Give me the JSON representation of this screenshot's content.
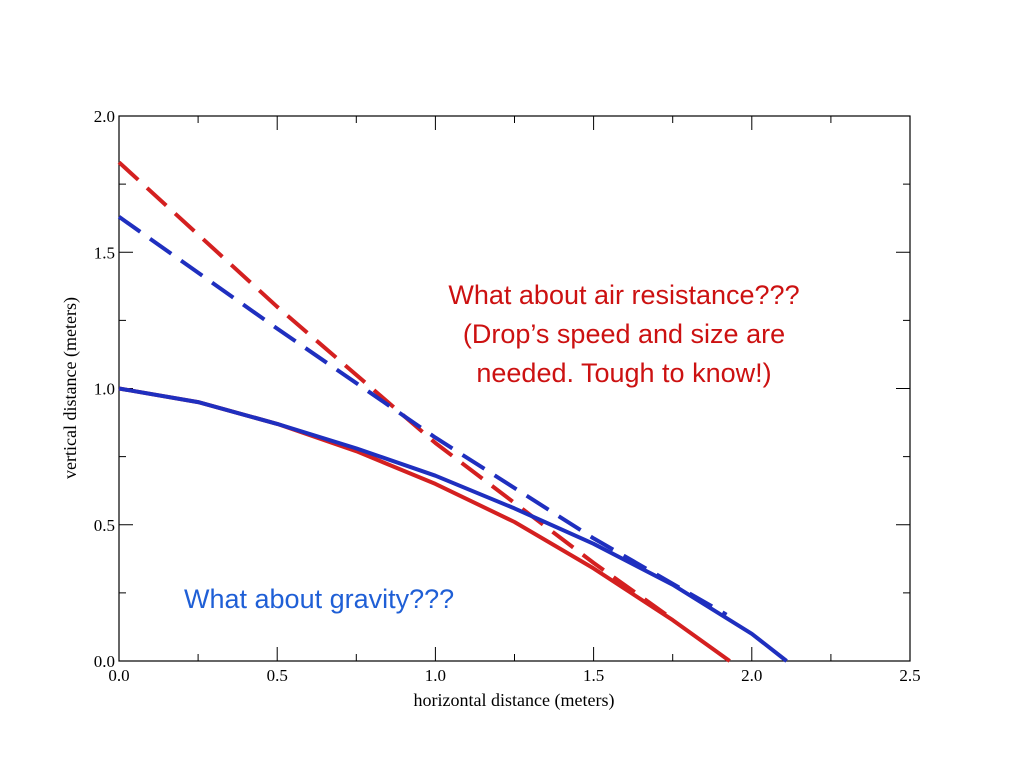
{
  "chart_data": {
    "type": "line",
    "xlabel": "horizontal distance (meters)",
    "ylabel": "vertical distance (meters)",
    "xlim": [
      0,
      2.5
    ],
    "ylim": [
      0,
      2.0
    ],
    "x_ticks": [
      "0.0",
      "0.5",
      "1.0",
      "1.5",
      "2.0",
      "2.5"
    ],
    "y_ticks": [
      "0.0",
      "0.5",
      "1.0",
      "1.5",
      "2.0"
    ],
    "grid": false,
    "series": [
      {
        "color": "#d42020",
        "style": "dashed",
        "x": [
          0,
          0.5,
          1.0,
          1.5,
          1.73
        ],
        "y": [
          1.83,
          1.3,
          0.8,
          0.36,
          0.17
        ]
      },
      {
        "color": "#1f2fbf",
        "style": "dashed",
        "x": [
          0,
          0.5,
          1.0,
          1.5,
          1.92
        ],
        "y": [
          1.63,
          1.22,
          0.82,
          0.45,
          0.17
        ]
      },
      {
        "color": "#d42020",
        "style": "solid",
        "x": [
          0,
          0.25,
          0.5,
          0.75,
          1.0,
          1.25,
          1.5,
          1.75,
          1.93
        ],
        "y": [
          1.0,
          0.95,
          0.87,
          0.77,
          0.65,
          0.51,
          0.34,
          0.15,
          0.0
        ]
      },
      {
        "color": "#1f2fbf",
        "style": "solid",
        "x": [
          0,
          0.25,
          0.5,
          0.75,
          1.0,
          1.25,
          1.5,
          1.75,
          2.0,
          2.11
        ],
        "y": [
          1.0,
          0.95,
          0.87,
          0.78,
          0.68,
          0.56,
          0.43,
          0.28,
          0.1,
          0.0
        ]
      }
    ],
    "annotations": [
      {
        "lines": [
          "What about air resistance???",
          "(Drop’s speed and size are",
          "needed.  Tough to know!)"
        ],
        "color": "#cc1111"
      },
      {
        "lines": [
          "What about gravity???"
        ],
        "color": "#1f5fd6"
      }
    ]
  }
}
